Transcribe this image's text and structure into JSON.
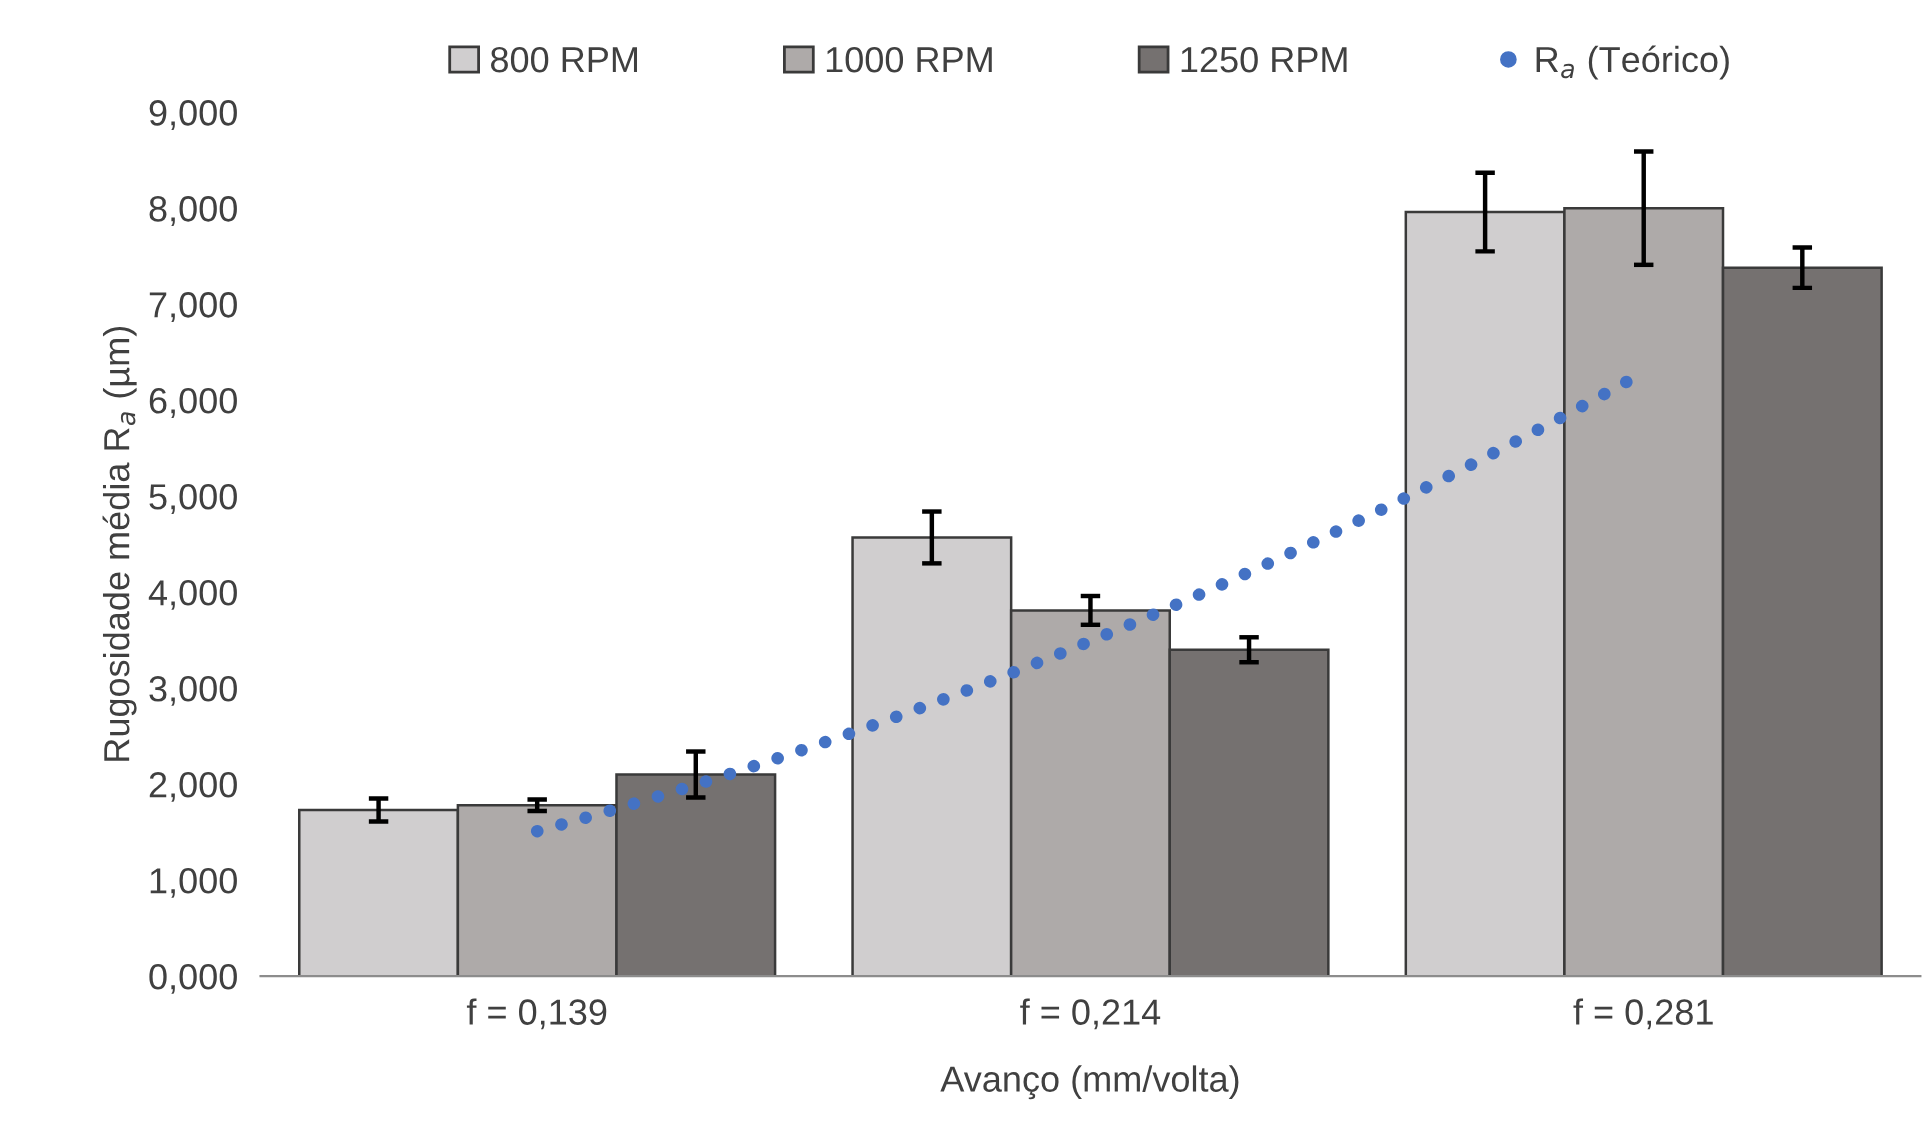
{
  "chart_data": {
    "type": "bar",
    "xlabel": "Avanço (mm/volta)",
    "ylabel": "Rugosidade média R$_{a}$ (µm)",
    "categories": [
      "f = 0,139",
      "f = 0,214",
      "f = 0,281"
    ],
    "series": [
      {
        "name": "800 RPM",
        "color": "#d0cecf",
        "values": [
          1.73,
          4.57,
          7.96
        ],
        "errors": [
          0.12,
          0.27,
          0.41
        ]
      },
      {
        "name": "1000 RPM",
        "color": "#aeaaa9",
        "values": [
          1.78,
          3.81,
          8.0
        ],
        "errors": [
          0.06,
          0.15,
          0.59
        ]
      },
      {
        "name": "1250 RPM",
        "color": "#757170",
        "values": [
          2.1,
          3.4,
          7.38
        ],
        "errors": [
          0.24,
          0.13,
          0.21
        ]
      },
      {
        "name": "R$_{a}$ (Teórico)",
        "type": "line",
        "color": "#4472c4",
        "line_style": "dotted",
        "values": [
          1.51,
          3.49,
          6.29
        ]
      }
    ],
    "ylim": [
      0,
      9
    ],
    "yticks": [
      {
        "value": 0,
        "label": "0,000"
      },
      {
        "value": 1,
        "label": "1,000"
      },
      {
        "value": 2,
        "label": "2,000"
      },
      {
        "value": 3,
        "label": "3,000"
      },
      {
        "value": 4,
        "label": "4,000"
      },
      {
        "value": 5,
        "label": "5,000"
      },
      {
        "value": 6,
        "label": "6,000"
      },
      {
        "value": 7,
        "label": "7,000"
      },
      {
        "value": 8,
        "label": "8,000"
      },
      {
        "value": 9,
        "label": "9,000"
      }
    ],
    "grid": false,
    "legend": "top"
  }
}
